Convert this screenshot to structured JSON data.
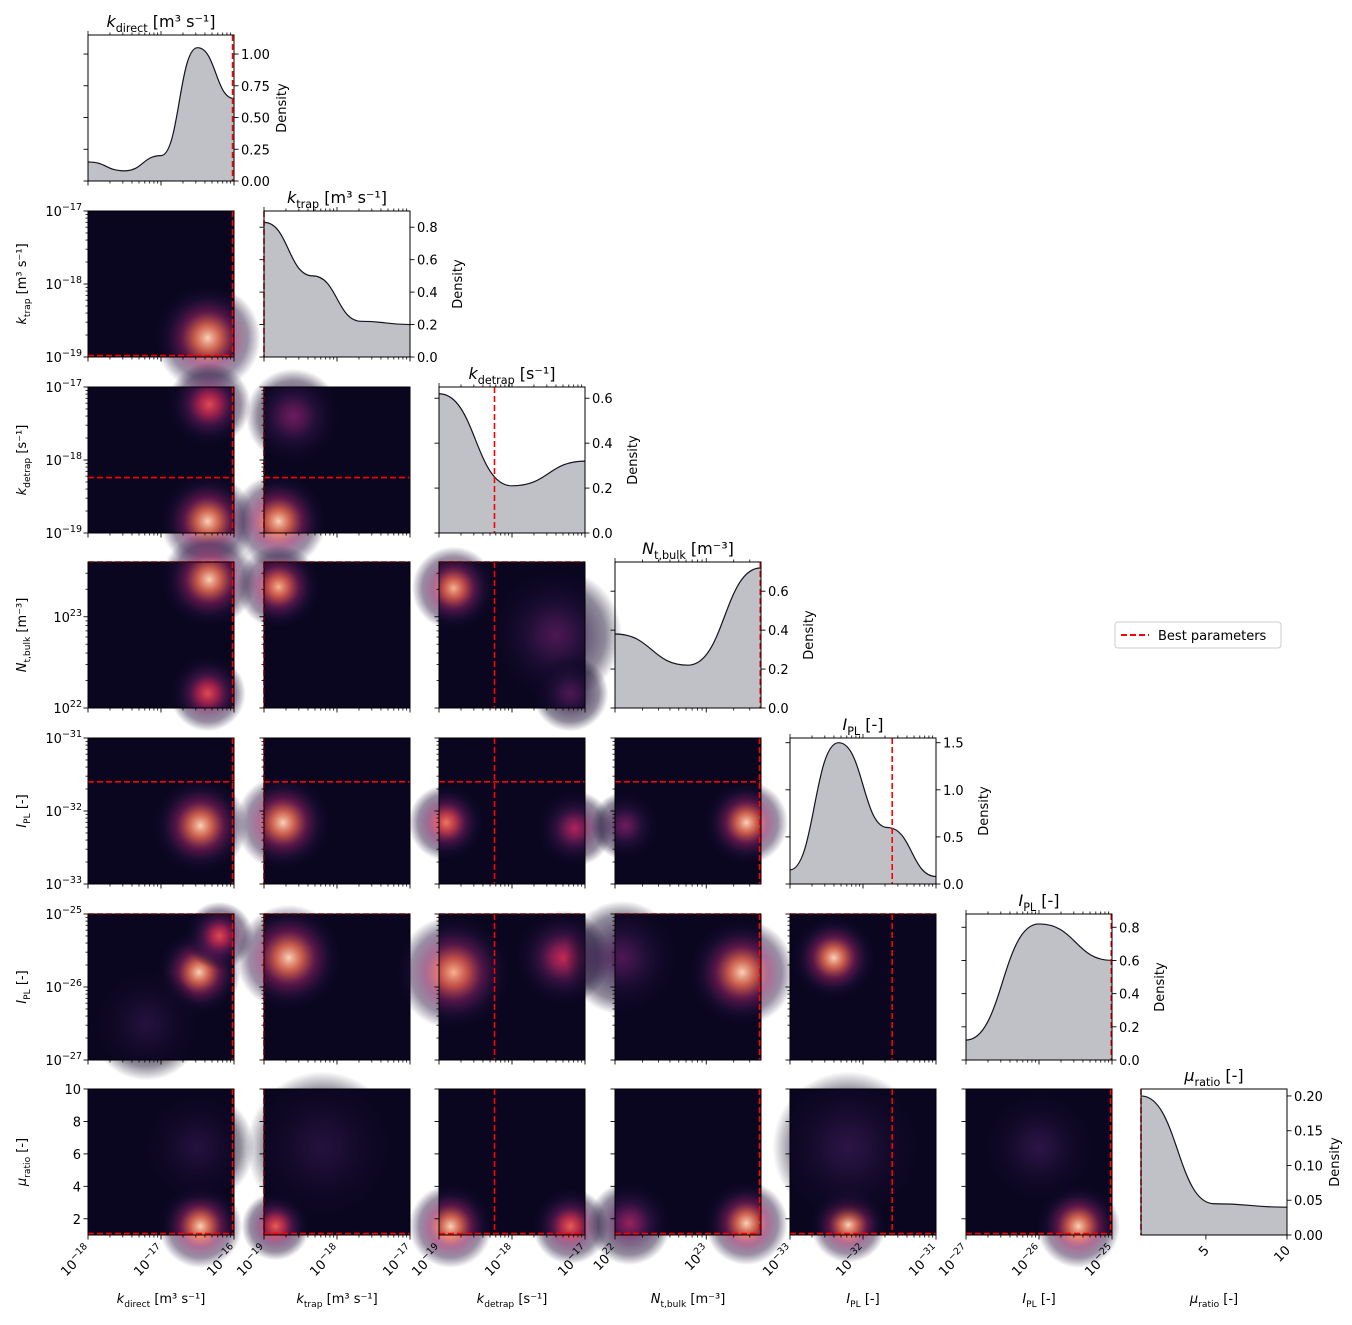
{
  "legend": {
    "label": "Best parameters",
    "color": "#e41a1c"
  },
  "colors": {
    "kde_fill": "#c0c1c6",
    "kde_line": "#14131f",
    "heat_low": "#0a0620",
    "best": "#ff0000"
  },
  "chart_data": {
    "type": "heatmap",
    "layout": "corner-plot",
    "parameters": [
      {
        "name": "k_direct",
        "base": "k",
        "sub": "direct",
        "units": "[m³ s⁻¹]",
        "scale": "log",
        "range_exp": [
          -18,
          -16
        ],
        "ticks_exp": [
          -18,
          -17,
          -16
        ],
        "best_exp": -16.02,
        "kde": {
          "y": [
            0.15,
            0.08,
            0.2,
            1.05,
            0.65
          ],
          "ymax": 1.15,
          "yticks": [
            "0.00",
            "0.25",
            "0.50",
            "0.75",
            "1.00"
          ]
        }
      },
      {
        "name": "k_trap",
        "base": "k",
        "sub": "trap",
        "units": "[m³ s⁻¹]",
        "scale": "log",
        "range_exp": [
          -19,
          -17
        ],
        "ticks_exp": [
          -19,
          -18,
          -17
        ],
        "best_exp": -19.0,
        "kde": {
          "y": [
            0.83,
            0.5,
            0.22,
            0.2
          ],
          "ymax": 0.9,
          "yticks": [
            "0.0",
            "0.2",
            "0.4",
            "0.6",
            "0.8"
          ]
        }
      },
      {
        "name": "k_detrap",
        "base": "k",
        "sub": "detrap",
        "units": "[s⁻¹]",
        "scale": "log",
        "range_exp": [
          -19,
          -17
        ],
        "ticks_exp": [
          -19,
          -18,
          -17
        ],
        "best_exp": -18.24,
        "kde": {
          "y": [
            0.62,
            0.21,
            0.32
          ],
          "ymax": 0.65,
          "yticks": [
            "0.0",
            "0.2",
            "0.4",
            "0.6"
          ]
        }
      },
      {
        "name": "N_t,bulk",
        "base": "N",
        "sub": "t,bulk",
        "units": "[m⁻³]",
        "scale": "log",
        "range_exp": [
          22,
          23.6
        ],
        "ticks_exp": [
          22,
          23
        ],
        "best_exp": 23.6,
        "kde": {
          "y": [
            0.38,
            0.22,
            0.72
          ],
          "ymax": 0.75,
          "yticks": [
            "0.0",
            "0.2",
            "0.4",
            "0.6"
          ]
        }
      },
      {
        "name": "I_PL_1",
        "base": "I",
        "sub": "PL",
        "units": "[-]",
        "scale": "log",
        "range_exp": [
          -33,
          -31
        ],
        "ticks_exp": [
          -33,
          -32,
          -31
        ],
        "best_exp": -31.6,
        "kde": {
          "y": [
            0.15,
            1.5,
            0.6,
            0.08
          ],
          "ymax": 1.55,
          "yticks": [
            "0.0",
            "0.5",
            "1.0",
            "1.5"
          ]
        }
      },
      {
        "name": "I_PL_2",
        "base": "I",
        "sub": "PL",
        "units": "[-]",
        "scale": "log",
        "range_exp": [
          -27,
          -25
        ],
        "ticks_exp": [
          -27,
          -26,
          -25
        ],
        "best_exp": -25.0,
        "kde": {
          "y": [
            0.12,
            0.82,
            0.6
          ],
          "ymax": 0.88,
          "yticks": [
            "0.0",
            "0.2",
            "0.4",
            "0.6",
            "0.8"
          ]
        }
      },
      {
        "name": "mu_ratio",
        "base": "μ",
        "sub": "ratio",
        "units": "[-]",
        "scale": "linear",
        "range": [
          1,
          10
        ],
        "ticks": [
          2,
          4,
          6,
          8,
          10
        ],
        "diag_ticks": [
          5,
          10
        ],
        "best": 1.0,
        "kde": {
          "y": [
            0.2,
            0.045,
            0.04
          ],
          "ymax": 0.21,
          "yticks": [
            "0.00",
            "0.05",
            "0.10",
            "0.15",
            "0.20"
          ]
        }
      }
    ],
    "density_label": "Density"
  }
}
